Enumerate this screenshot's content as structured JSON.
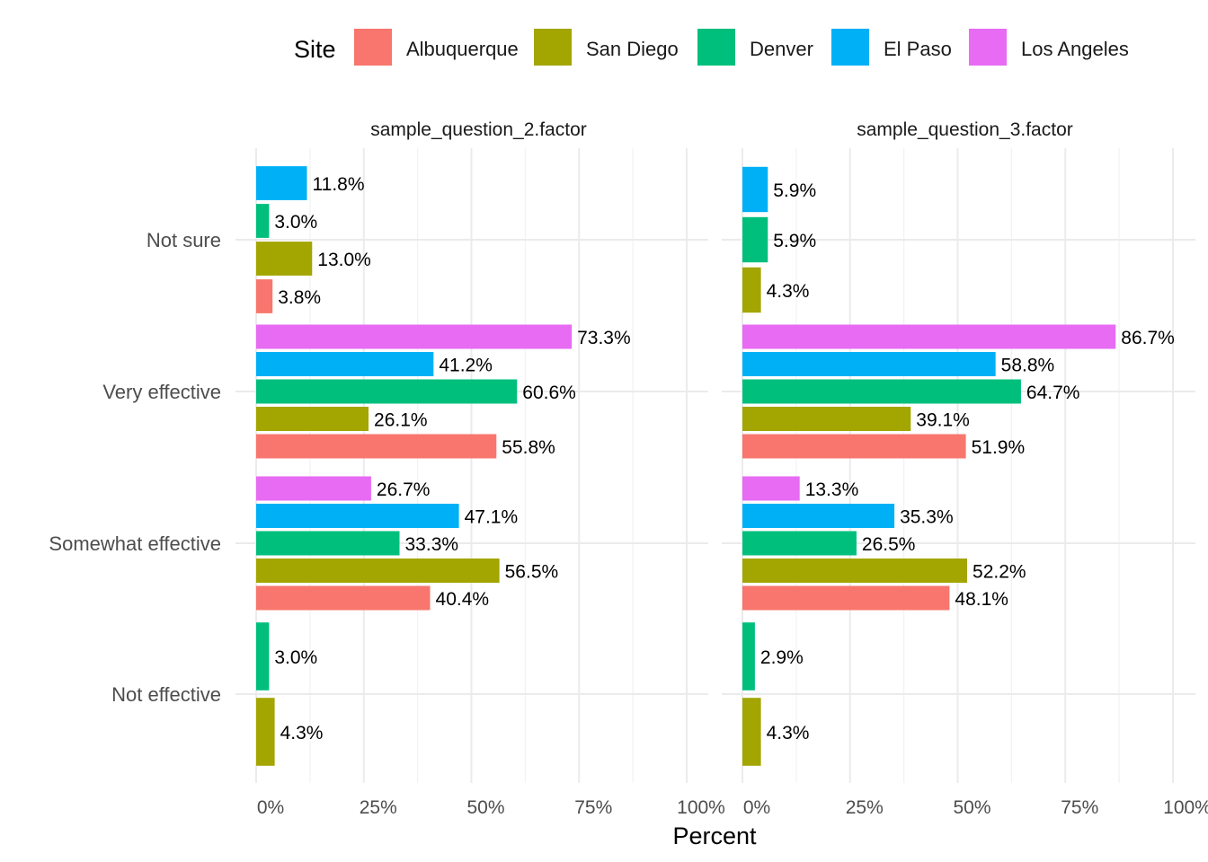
{
  "chart_data": {
    "type": "bar",
    "orientation": "horizontal",
    "xlabel": "Percent",
    "legend": {
      "title": "Site",
      "position": "top"
    },
    "series": [
      {
        "name": "Albuquerque",
        "color": "#F8766D"
      },
      {
        "name": "San Diego",
        "color": "#A3A500"
      },
      {
        "name": "Denver",
        "color": "#00BF7D"
      },
      {
        "name": "El Paso",
        "color": "#00B0F6"
      },
      {
        "name": "Los Angeles",
        "color": "#E76BF3"
      }
    ],
    "categories": [
      "Not sure",
      "Very effective",
      "Somewhat effective",
      "Not effective"
    ],
    "x_ticks": [
      "0%",
      "25%",
      "50%",
      "75%",
      "100%"
    ],
    "xlim": [
      0,
      100
    ],
    "grid": true,
    "facets": [
      {
        "title": "sample_question_2.factor",
        "groups": [
          {
            "category": "Not sure",
            "bars": [
              {
                "site": "El Paso",
                "value": 11.8,
                "label": "11.8%"
              },
              {
                "site": "Denver",
                "value": 3.0,
                "label": "3.0%"
              },
              {
                "site": "San Diego",
                "value": 13.0,
                "label": "13.0%"
              },
              {
                "site": "Albuquerque",
                "value": 3.8,
                "label": "3.8%"
              }
            ]
          },
          {
            "category": "Very effective",
            "bars": [
              {
                "site": "Los Angeles",
                "value": 73.3,
                "label": "73.3%"
              },
              {
                "site": "El Paso",
                "value": 41.2,
                "label": "41.2%"
              },
              {
                "site": "Denver",
                "value": 60.6,
                "label": "60.6%"
              },
              {
                "site": "San Diego",
                "value": 26.1,
                "label": "26.1%"
              },
              {
                "site": "Albuquerque",
                "value": 55.8,
                "label": "55.8%"
              }
            ]
          },
          {
            "category": "Somewhat effective",
            "bars": [
              {
                "site": "Los Angeles",
                "value": 26.7,
                "label": "26.7%"
              },
              {
                "site": "El Paso",
                "value": 47.1,
                "label": "47.1%"
              },
              {
                "site": "Denver",
                "value": 33.3,
                "label": "33.3%"
              },
              {
                "site": "San Diego",
                "value": 56.5,
                "label": "56.5%"
              },
              {
                "site": "Albuquerque",
                "value": 40.4,
                "label": "40.4%"
              }
            ]
          },
          {
            "category": "Not effective",
            "bars": [
              {
                "site": "Denver",
                "value": 3.0,
                "label": "3.0%"
              },
              {
                "site": "San Diego",
                "value": 4.3,
                "label": "4.3%"
              }
            ]
          }
        ]
      },
      {
        "title": "sample_question_3.factor",
        "groups": [
          {
            "category": "Not sure",
            "bars": [
              {
                "site": "El Paso",
                "value": 5.9,
                "label": "5.9%"
              },
              {
                "site": "Denver",
                "value": 5.9,
                "label": "5.9%"
              },
              {
                "site": "San Diego",
                "value": 4.3,
                "label": "4.3%"
              }
            ]
          },
          {
            "category": "Very effective",
            "bars": [
              {
                "site": "Los Angeles",
                "value": 86.7,
                "label": "86.7%"
              },
              {
                "site": "El Paso",
                "value": 58.8,
                "label": "58.8%"
              },
              {
                "site": "Denver",
                "value": 64.7,
                "label": "64.7%"
              },
              {
                "site": "San Diego",
                "value": 39.1,
                "label": "39.1%"
              },
              {
                "site": "Albuquerque",
                "value": 51.9,
                "label": "51.9%"
              }
            ]
          },
          {
            "category": "Somewhat effective",
            "bars": [
              {
                "site": "Los Angeles",
                "value": 13.3,
                "label": "13.3%"
              },
              {
                "site": "El Paso",
                "value": 35.3,
                "label": "35.3%"
              },
              {
                "site": "Denver",
                "value": 26.5,
                "label": "26.5%"
              },
              {
                "site": "San Diego",
                "value": 52.2,
                "label": "52.2%"
              },
              {
                "site": "Albuquerque",
                "value": 48.1,
                "label": "48.1%"
              }
            ]
          },
          {
            "category": "Not effective",
            "bars": [
              {
                "site": "Denver",
                "value": 2.9,
                "label": "2.9%"
              },
              {
                "site": "San Diego",
                "value": 4.3,
                "label": "4.3%"
              }
            ]
          }
        ]
      }
    ]
  }
}
